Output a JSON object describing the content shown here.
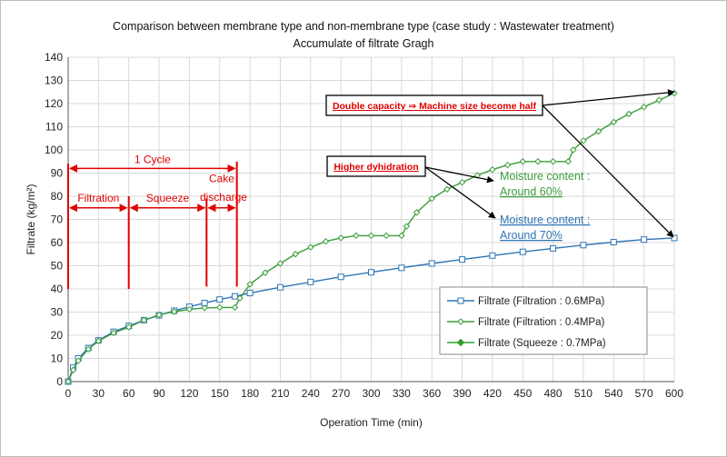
{
  "chart_data": {
    "type": "line",
    "title": "Comparison between membrane type and non-membrane type (case study : Wastewater treatment)",
    "subtitle": "Accumulate of filtrate Gragh",
    "xlabel": "Operation Time (min)",
    "ylabel": "Filtrate (kg/m²)",
    "xlim": [
      0,
      600
    ],
    "ylim": [
      0,
      140
    ],
    "xticks": [
      0,
      30,
      60,
      90,
      120,
      150,
      180,
      210,
      240,
      270,
      300,
      330,
      360,
      390,
      420,
      450,
      480,
      510,
      540,
      570,
      600
    ],
    "yticks": [
      0,
      10,
      20,
      30,
      40,
      50,
      60,
      70,
      80,
      90,
      100,
      110,
      120,
      130,
      140
    ],
    "grid": true,
    "legend_position": "bottom-right",
    "series": [
      {
        "name": "Filtrate (Filtration : 0.6MPa)",
        "color": "#2e75b6",
        "marker": "square-open",
        "x": [
          0,
          5,
          10,
          20,
          30,
          45,
          60,
          75,
          90,
          105,
          120,
          135,
          150,
          165,
          180,
          210,
          240,
          270,
          300,
          330,
          360,
          390,
          420,
          450,
          480,
          510,
          540,
          570,
          600
        ],
        "y": [
          0,
          6,
          10,
          14.5,
          17.8,
          21.5,
          24,
          26.5,
          28.6,
          30.6,
          32.3,
          33.9,
          35.4,
          36.8,
          38.2,
          40.7,
          43,
          45.2,
          47.2,
          49.1,
          51,
          52.7,
          54.4,
          56,
          57.5,
          58.9,
          60.2,
          61.3,
          62
        ]
      },
      {
        "name": "Filtrate (Filtration : 0.4MPa)",
        "color": "#3a9d3a",
        "marker": "diamond-open",
        "x": [
          0,
          5,
          10,
          20,
          30,
          45,
          60,
          75,
          90,
          105,
          120,
          135,
          150,
          165,
          170,
          180,
          195,
          210,
          225,
          240,
          255,
          270,
          285,
          300,
          315,
          330,
          335,
          345,
          360,
          375,
          390,
          405,
          420,
          435,
          450,
          465,
          480,
          495,
          500,
          510,
          525,
          540,
          555,
          570,
          585,
          600
        ],
        "y": [
          0,
          5,
          9,
          14,
          17.5,
          21,
          23.5,
          26.5,
          28.8,
          30.2,
          31.2,
          31.8,
          32,
          32,
          36,
          42,
          47,
          51,
          55,
          58,
          60.5,
          62,
          63,
          63,
          63,
          63,
          67,
          73,
          79,
          83,
          86,
          89,
          91.5,
          93.5,
          95,
          95,
          95,
          95,
          100,
          104,
          108,
          112,
          115.5,
          118.5,
          121.5,
          124.5
        ]
      },
      {
        "name": "Filtrate (Squeeze : 0.7MPa)",
        "color": "#2ea02e",
        "marker": "diamond-filled",
        "x": [],
        "y": []
      }
    ],
    "annotations": {
      "cycle": "1 Cycle",
      "filtration": "Filtration",
      "squeeze": "Squeeze",
      "cake": "Cake",
      "discharge": "discharge",
      "double_capacity": "Double capacity ⇒ Machine size become half",
      "higher_dehydration": "Higher dyhidration",
      "moisture_green_1": "Moisture content :",
      "moisture_green_2": "Around 60%",
      "moisture_blue_1": "Moisture content :",
      "moisture_blue_2": "Around 70%"
    },
    "phase_markers_x": [
      0,
      60,
      137,
      167
    ],
    "colors": {
      "annotation_red": "#e00000",
      "blue": "#2e75b6",
      "green": "#3a9d3a",
      "grid": "#d9d9d9"
    }
  }
}
